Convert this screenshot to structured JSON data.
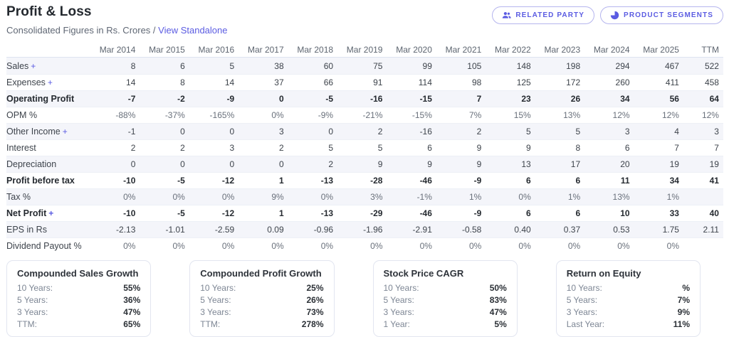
{
  "colors": {
    "accent": "#5b5ce2",
    "stripe": "#f4f5fa"
  },
  "header": {
    "title": "Profit & Loss",
    "subtitle": "Consolidated Figures in Rs. Crores /",
    "standalone_link": "View Standalone",
    "buttons": [
      {
        "label": "Related Party",
        "icon": "users-icon"
      },
      {
        "label": "Product Segments",
        "icon": "pie-chart-icon"
      }
    ]
  },
  "table": {
    "columns": [
      "",
      "Mar 2014",
      "Mar 2015",
      "Mar 2016",
      "Mar 2017",
      "Mar 2018",
      "Mar 2019",
      "Mar 2020",
      "Mar 2021",
      "Mar 2022",
      "Mar 2023",
      "Mar 2024",
      "Mar 2025",
      "TTM"
    ],
    "rows": [
      {
        "label": "Sales",
        "suffix": "+",
        "style": "normal",
        "values": [
          "8",
          "6",
          "5",
          "38",
          "60",
          "75",
          "99",
          "105",
          "148",
          "198",
          "294",
          "467",
          "522"
        ]
      },
      {
        "label": "Expenses",
        "suffix": "+",
        "style": "normal",
        "values": [
          "14",
          "8",
          "14",
          "37",
          "66",
          "91",
          "114",
          "98",
          "125",
          "172",
          "260",
          "411",
          "458"
        ]
      },
      {
        "label": "Operating Profit",
        "suffix": "",
        "style": "bold",
        "values": [
          "-7",
          "-2",
          "-9",
          "0",
          "-5",
          "-16",
          "-15",
          "7",
          "23",
          "26",
          "34",
          "56",
          "64"
        ]
      },
      {
        "label": "OPM %",
        "suffix": "",
        "style": "muted",
        "values": [
          "-88%",
          "-37%",
          "-165%",
          "0%",
          "-9%",
          "-21%",
          "-15%",
          "7%",
          "15%",
          "13%",
          "12%",
          "12%",
          "12%"
        ]
      },
      {
        "label": "Other Income",
        "suffix": "+",
        "style": "normal",
        "values": [
          "-1",
          "0",
          "0",
          "3",
          "0",
          "2",
          "-16",
          "2",
          "5",
          "5",
          "3",
          "4",
          "3"
        ]
      },
      {
        "label": "Interest",
        "suffix": "",
        "style": "normal",
        "values": [
          "2",
          "2",
          "3",
          "2",
          "5",
          "5",
          "6",
          "9",
          "9",
          "8",
          "6",
          "7",
          "7"
        ]
      },
      {
        "label": "Depreciation",
        "suffix": "",
        "style": "normal",
        "values": [
          "0",
          "0",
          "0",
          "0",
          "2",
          "9",
          "9",
          "9",
          "13",
          "17",
          "20",
          "19",
          "19"
        ]
      },
      {
        "label": "Profit before tax",
        "suffix": "",
        "style": "bold",
        "values": [
          "-10",
          "-5",
          "-12",
          "1",
          "-13",
          "-28",
          "-46",
          "-9",
          "6",
          "6",
          "11",
          "34",
          "41"
        ]
      },
      {
        "label": "Tax %",
        "suffix": "",
        "style": "muted",
        "values": [
          "0%",
          "0%",
          "0%",
          "9%",
          "0%",
          "3%",
          "-1%",
          "1%",
          "0%",
          "1%",
          "13%",
          "1%",
          ""
        ]
      },
      {
        "label": "Net Profit",
        "suffix": "+",
        "style": "bold",
        "values": [
          "-10",
          "-5",
          "-12",
          "1",
          "-13",
          "-29",
          "-46",
          "-9",
          "6",
          "6",
          "10",
          "33",
          "40"
        ]
      },
      {
        "label": "EPS in Rs",
        "suffix": "",
        "style": "normal",
        "values": [
          "-2.13",
          "-1.01",
          "-2.59",
          "0.09",
          "-0.96",
          "-1.96",
          "-2.91",
          "-0.58",
          "0.40",
          "0.37",
          "0.53",
          "1.75",
          "2.11"
        ]
      },
      {
        "label": "Dividend Payout %",
        "suffix": "",
        "style": "muted",
        "values": [
          "0%",
          "0%",
          "0%",
          "0%",
          "0%",
          "0%",
          "0%",
          "0%",
          "0%",
          "0%",
          "0%",
          "0%",
          ""
        ]
      }
    ]
  },
  "cards": [
    {
      "title": "Compounded Sales Growth",
      "rows": [
        {
          "label": "10 Years:",
          "value": "55%"
        },
        {
          "label": "5 Years:",
          "value": "36%"
        },
        {
          "label": "3 Years:",
          "value": "47%"
        },
        {
          "label": "TTM:",
          "value": "65%"
        }
      ]
    },
    {
      "title": "Compounded Profit Growth",
      "rows": [
        {
          "label": "10 Years:",
          "value": "25%"
        },
        {
          "label": "5 Years:",
          "value": "26%"
        },
        {
          "label": "3 Years:",
          "value": "73%"
        },
        {
          "label": "TTM:",
          "value": "278%"
        }
      ]
    },
    {
      "title": "Stock Price CAGR",
      "rows": [
        {
          "label": "10 Years:",
          "value": "50%"
        },
        {
          "label": "5 Years:",
          "value": "83%"
        },
        {
          "label": "3 Years:",
          "value": "47%"
        },
        {
          "label": "1 Year:",
          "value": "5%"
        }
      ]
    },
    {
      "title": "Return on Equity",
      "rows": [
        {
          "label": "10 Years:",
          "value": "%"
        },
        {
          "label": "5 Years:",
          "value": "7%"
        },
        {
          "label": "3 Years:",
          "value": "9%"
        },
        {
          "label": "Last Year:",
          "value": "11%"
        }
      ]
    }
  ]
}
